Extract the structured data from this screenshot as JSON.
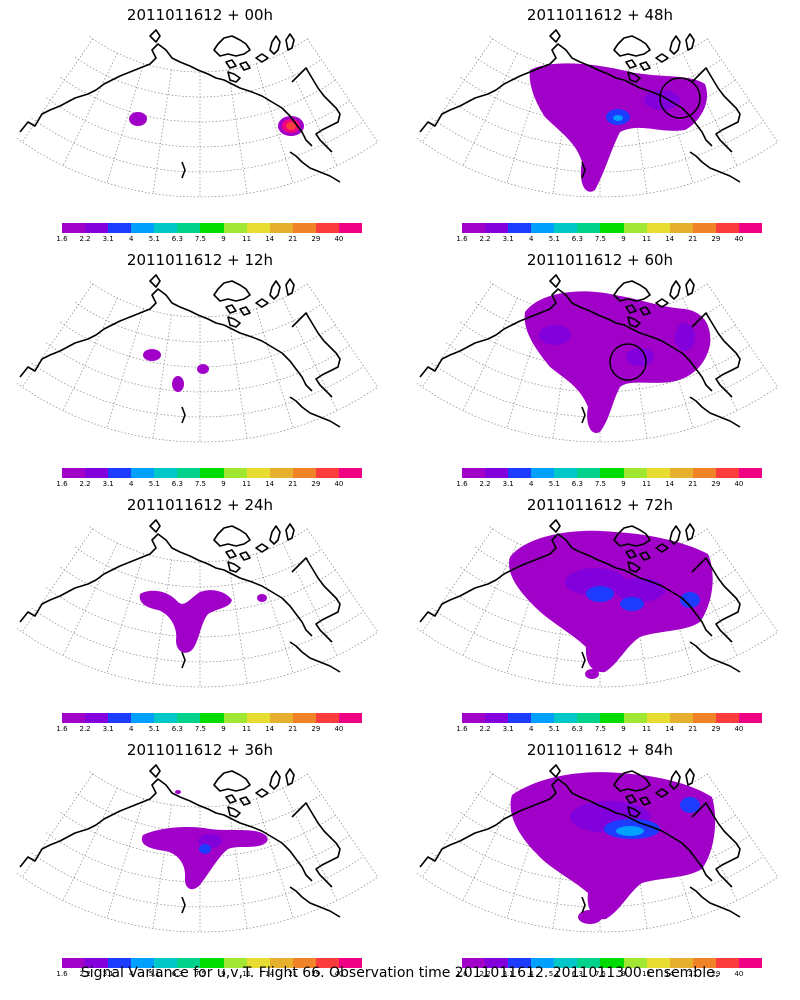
{
  "footer_text": "Signal Variance for u,v,T. Flight 66. Observation time 2011011612. 2011011300 ensemble.",
  "colorbar": {
    "colors": [
      "#a000c8",
      "#8200dc",
      "#1e3cff",
      "#00a0ff",
      "#00c8c8",
      "#00d28c",
      "#00dc00",
      "#a0e632",
      "#e6dc32",
      "#e6af2d",
      "#f08228",
      "#fa3c3c",
      "#f00082"
    ],
    "labels": [
      "1.6",
      "2.2",
      "3.1",
      "4",
      "5.1",
      "6.3",
      "7.5",
      "9",
      "11",
      "14",
      "21",
      "29",
      "40"
    ]
  },
  "panels": [
    {
      "title": "2011011612 + 00h",
      "lead_hours": 0
    },
    {
      "title": "2011011612 + 48h",
      "lead_hours": 48
    },
    {
      "title": "2011011612 + 12h",
      "lead_hours": 12
    },
    {
      "title": "2011011612 + 60h",
      "lead_hours": 60
    },
    {
      "title": "2011011612 + 24h",
      "lead_hours": 24
    },
    {
      "title": "2011011612 + 72h",
      "lead_hours": 72
    },
    {
      "title": "2011011612 + 36h",
      "lead_hours": 36
    },
    {
      "title": "2011011612 + 84h",
      "lead_hours": 84
    }
  ]
}
